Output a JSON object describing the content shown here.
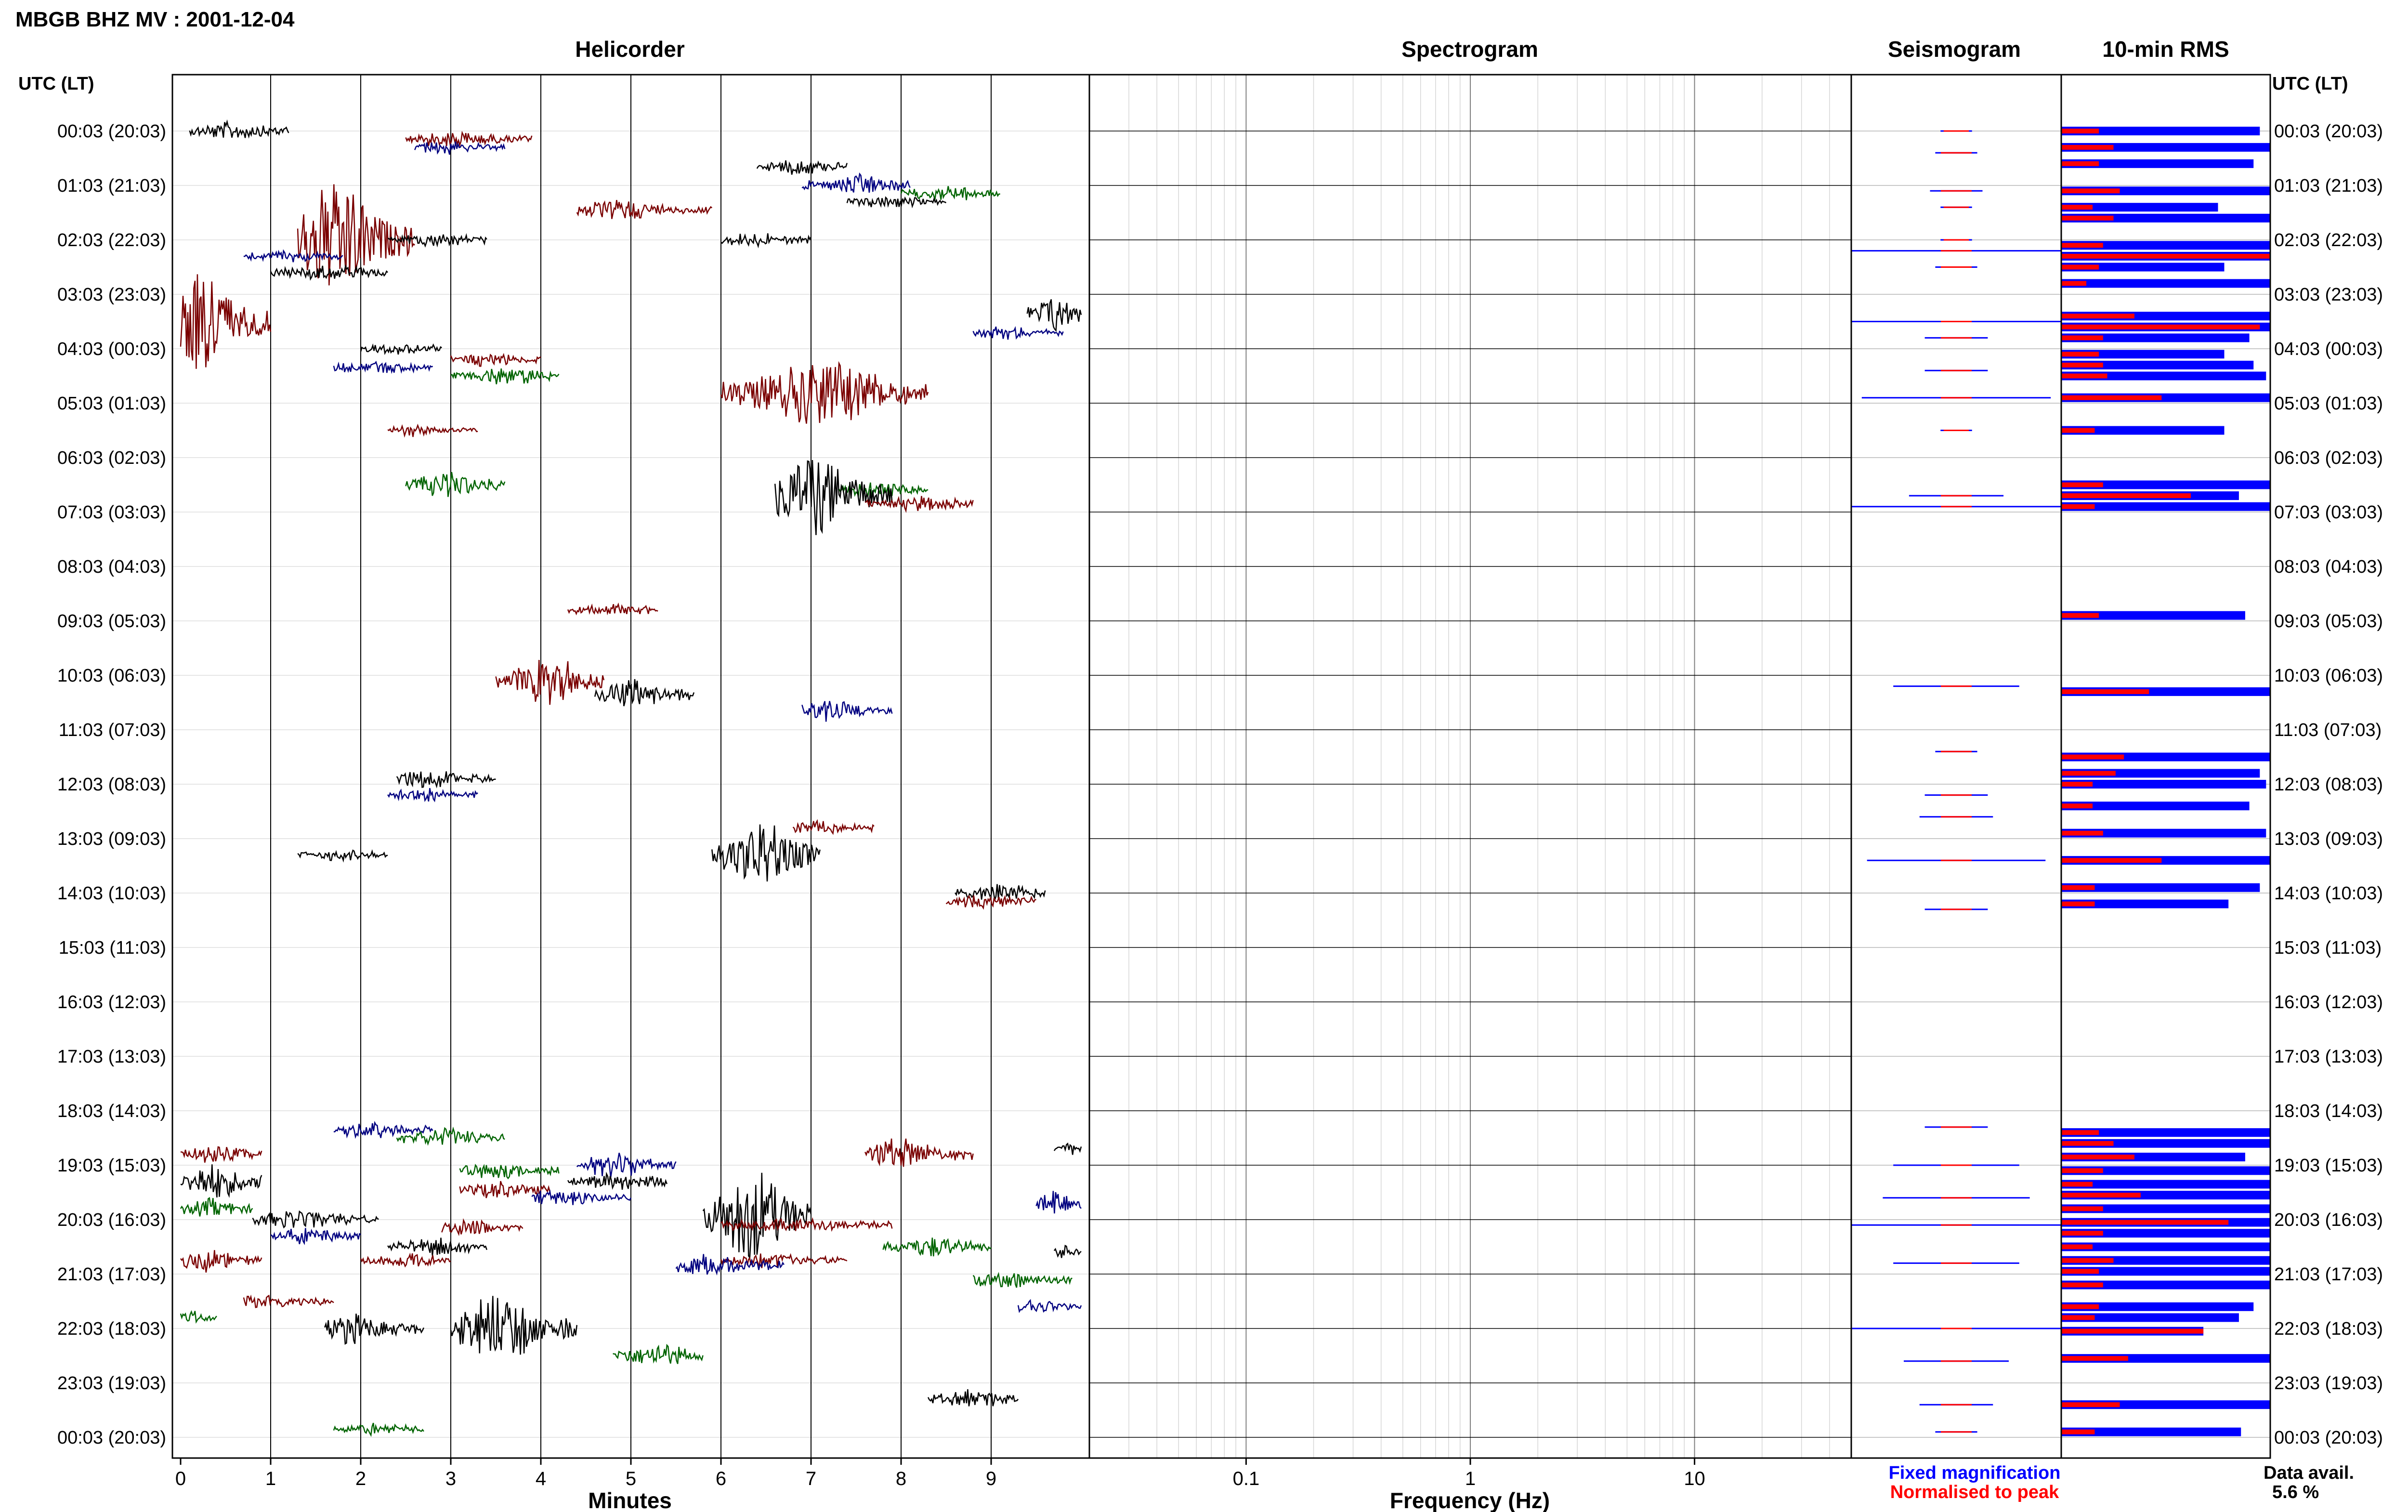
{
  "figure": {
    "title": "MBGB BHZ MV : 2001-12-04",
    "panel_titles": {
      "helicorder": "Helicorder",
      "spectrogram": "Spectrogram",
      "seismogram": "Seismogram",
      "rms": "10-min RMS"
    },
    "utc_lt_header_left": "UTC (LT)",
    "utc_lt_header_right": "UTC (LT)",
    "xlabel_helicorder": "Minutes",
    "xlabel_spectrogram": "Frequency (Hz)",
    "legend": {
      "fixed": "Fixed magnification",
      "normalised": "Normalised to peak"
    },
    "data_avail_label": "Data avail.",
    "data_avail_value": "5.6 %",
    "colors": {
      "trace_cycle": [
        "#000000",
        "#7a0000",
        "#000080",
        "#006400"
      ],
      "fixed": "#0000ff",
      "normalised": "#ff0000",
      "grid": "#000000"
    }
  },
  "chart_data": [
    {
      "type": "line",
      "name": "helicorder",
      "xlabel": "Minutes",
      "x_ticks": [
        0,
        1,
        2,
        3,
        4,
        5,
        6,
        7,
        8,
        9
      ],
      "xlim": [
        0,
        10
      ],
      "row_labels": [
        "00:03 (20:03)",
        "01:03 (21:03)",
        "02:03 (22:03)",
        "03:03 (23:03)",
        "04:03 (00:03)",
        "05:03 (01:03)",
        "06:03 (02:03)",
        "07:03 (03:03)",
        "08:03 (04:03)",
        "09:03 (05:03)",
        "10:03 (06:03)",
        "11:03 (07:03)",
        "12:03 (08:03)",
        "13:03 (09:03)",
        "14:03 (10:03)",
        "15:03 (11:03)",
        "16:03 (12:03)",
        "17:03 (13:03)",
        "18:03 (14:03)",
        "19:03 (15:03)",
        "20:03 (16:03)",
        "21:03 (17:03)",
        "22:03 (18:03)",
        "23:03 (19:03)",
        "00:03 (20:03)"
      ],
      "bursts": [
        {
          "row": 0.0,
          "t0": 0.1,
          "t1": 1.2,
          "amp": 0.15,
          "c": 0
        },
        {
          "row": 0.15,
          "t0": 2.5,
          "t1": 3.9,
          "amp": 0.12,
          "c": 1
        },
        {
          "row": 0.3,
          "t0": 2.6,
          "t1": 3.6,
          "amp": 0.1,
          "c": 2
        },
        {
          "row": 0.65,
          "t0": 6.4,
          "t1": 7.4,
          "amp": 0.12,
          "c": 0
        },
        {
          "row": 1.0,
          "t0": 6.9,
          "t1": 8.1,
          "amp": 0.16,
          "c": 2
        },
        {
          "row": 1.15,
          "t0": 8.0,
          "t1": 9.1,
          "amp": 0.12,
          "c": 3
        },
        {
          "row": 1.3,
          "t0": 7.4,
          "t1": 8.5,
          "amp": 0.08,
          "c": 0
        },
        {
          "row": 1.45,
          "t0": 4.4,
          "t1": 5.9,
          "amp": 0.15,
          "c": 1
        },
        {
          "row": 2.0,
          "t0": 1.3,
          "t1": 2.6,
          "amp": 1.0,
          "c": 1
        },
        {
          "row": 2.0,
          "t0": 2.3,
          "t1": 3.4,
          "amp": 0.1,
          "c": 0
        },
        {
          "row": 2.0,
          "t0": 6.0,
          "t1": 7.0,
          "amp": 0.1,
          "c": 0
        },
        {
          "row": 2.3,
          "t0": 0.7,
          "t1": 1.8,
          "amp": 0.08,
          "c": 2
        },
        {
          "row": 2.6,
          "t0": 1.0,
          "t1": 2.3,
          "amp": 0.12,
          "c": 0
        },
        {
          "row": 3.5,
          "t0": 0.0,
          "t1": 1.0,
          "amp": 0.9,
          "c": 1
        },
        {
          "row": 3.35,
          "t0": 9.4,
          "t1": 10.0,
          "amp": 0.35,
          "c": 0
        },
        {
          "row": 3.7,
          "t0": 8.8,
          "t1": 9.8,
          "amp": 0.1,
          "c": 2
        },
        {
          "row": 4.0,
          "t0": 2.0,
          "t1": 2.9,
          "amp": 0.08,
          "c": 0
        },
        {
          "row": 4.2,
          "t0": 3.0,
          "t1": 4.0,
          "amp": 0.12,
          "c": 1
        },
        {
          "row": 4.35,
          "t0": 1.7,
          "t1": 2.8,
          "amp": 0.1,
          "c": 2
        },
        {
          "row": 4.5,
          "t0": 3.0,
          "t1": 4.2,
          "amp": 0.14,
          "c": 3
        },
        {
          "row": 4.8,
          "t0": 6.0,
          "t1": 8.3,
          "amp": 0.55,
          "c": 1
        },
        {
          "row": 5.5,
          "t0": 2.3,
          "t1": 3.3,
          "amp": 0.08,
          "c": 1
        },
        {
          "row": 6.5,
          "t0": 2.5,
          "t1": 3.6,
          "amp": 0.2,
          "c": 3
        },
        {
          "row": 6.6,
          "t0": 7.3,
          "t1": 8.3,
          "amp": 0.12,
          "c": 3
        },
        {
          "row": 6.7,
          "t0": 6.6,
          "t1": 7.9,
          "amp": 0.7,
          "c": 0
        },
        {
          "row": 6.85,
          "t0": 7.6,
          "t1": 8.8,
          "amp": 0.12,
          "c": 1
        },
        {
          "row": 8.8,
          "t0": 4.3,
          "t1": 5.3,
          "amp": 0.1,
          "c": 1
        },
        {
          "row": 10.1,
          "t0": 3.5,
          "t1": 4.7,
          "amp": 0.4,
          "c": 1
        },
        {
          "row": 10.35,
          "t0": 4.6,
          "t1": 5.7,
          "amp": 0.25,
          "c": 0
        },
        {
          "row": 10.65,
          "t0": 6.9,
          "t1": 7.9,
          "amp": 0.18,
          "c": 2
        },
        {
          "row": 11.9,
          "t0": 2.4,
          "t1": 3.5,
          "amp": 0.15,
          "c": 0
        },
        {
          "row": 12.2,
          "t0": 2.3,
          "t1": 3.3,
          "amp": 0.1,
          "c": 2
        },
        {
          "row": 12.8,
          "t0": 6.8,
          "t1": 7.7,
          "amp": 0.12,
          "c": 1
        },
        {
          "row": 13.3,
          "t0": 1.3,
          "t1": 2.3,
          "amp": 0.08,
          "c": 0
        },
        {
          "row": 13.3,
          "t0": 5.9,
          "t1": 7.1,
          "amp": 0.55,
          "c": 0
        },
        {
          "row": 14.0,
          "t0": 8.6,
          "t1": 9.6,
          "amp": 0.15,
          "c": 0
        },
        {
          "row": 14.15,
          "t0": 8.5,
          "t1": 9.5,
          "amp": 0.1,
          "c": 1
        },
        {
          "row": 18.35,
          "t0": 1.7,
          "t1": 2.8,
          "amp": 0.15,
          "c": 2
        },
        {
          "row": 18.5,
          "t0": 2.4,
          "t1": 3.6,
          "amp": 0.14,
          "c": 3
        },
        {
          "row": 18.8,
          "t0": 0.0,
          "t1": 0.9,
          "amp": 0.16,
          "c": 1
        },
        {
          "row": 18.8,
          "t0": 7.6,
          "t1": 8.8,
          "amp": 0.25,
          "c": 1
        },
        {
          "row": 18.7,
          "t0": 9.7,
          "t1": 10.0,
          "amp": 0.1,
          "c": 0
        },
        {
          "row": 19.0,
          "t0": 4.4,
          "t1": 5.5,
          "amp": 0.2,
          "c": 2
        },
        {
          "row": 19.1,
          "t0": 3.1,
          "t1": 4.2,
          "amp": 0.15,
          "c": 3
        },
        {
          "row": 19.3,
          "t0": 0.0,
          "t1": 0.9,
          "amp": 0.3,
          "c": 0
        },
        {
          "row": 19.3,
          "t0": 4.3,
          "t1": 5.4,
          "amp": 0.15,
          "c": 0
        },
        {
          "row": 19.45,
          "t0": 3.1,
          "t1": 4.1,
          "amp": 0.15,
          "c": 1
        },
        {
          "row": 19.6,
          "t0": 3.9,
          "t1": 5.0,
          "amp": 0.12,
          "c": 2
        },
        {
          "row": 19.9,
          "t0": 5.8,
          "t1": 7.0,
          "amp": 0.8,
          "c": 0
        },
        {
          "row": 19.7,
          "t0": 9.5,
          "t1": 10.0,
          "amp": 0.2,
          "c": 2
        },
        {
          "row": 19.8,
          "t0": 0.0,
          "t1": 0.8,
          "amp": 0.15,
          "c": 3
        },
        {
          "row": 20.0,
          "t0": 0.8,
          "t1": 2.2,
          "amp": 0.15,
          "c": 0
        },
        {
          "row": 20.15,
          "t0": 2.9,
          "t1": 3.8,
          "amp": 0.14,
          "c": 1
        },
        {
          "row": 20.3,
          "t0": 1.0,
          "t1": 2.0,
          "amp": 0.12,
          "c": 2
        },
        {
          "row": 20.1,
          "t0": 6.0,
          "t1": 7.9,
          "amp": 0.12,
          "c": 1
        },
        {
          "row": 20.5,
          "t0": 2.3,
          "t1": 3.4,
          "amp": 0.15,
          "c": 0
        },
        {
          "row": 20.5,
          "t0": 7.8,
          "t1": 9.0,
          "amp": 0.15,
          "c": 3
        },
        {
          "row": 20.75,
          "t0": 0.0,
          "t1": 0.9,
          "amp": 0.18,
          "c": 1
        },
        {
          "row": 20.75,
          "t0": 2.0,
          "t1": 3.0,
          "amp": 0.12,
          "c": 1
        },
        {
          "row": 20.75,
          "t0": 6.0,
          "t1": 7.4,
          "amp": 0.12,
          "c": 1
        },
        {
          "row": 20.6,
          "t0": 9.7,
          "t1": 10.0,
          "amp": 0.12,
          "c": 0
        },
        {
          "row": 20.85,
          "t0": 5.5,
          "t1": 6.7,
          "amp": 0.2,
          "c": 2
        },
        {
          "row": 21.1,
          "t0": 8.8,
          "t1": 9.9,
          "amp": 0.15,
          "c": 3
        },
        {
          "row": 21.5,
          "t0": 0.7,
          "t1": 1.7,
          "amp": 0.12,
          "c": 1
        },
        {
          "row": 21.6,
          "t0": 9.3,
          "t1": 10.0,
          "amp": 0.12,
          "c": 2
        },
        {
          "row": 21.8,
          "t0": 0.0,
          "t1": 0.4,
          "amp": 0.1,
          "c": 3
        },
        {
          "row": 22.0,
          "t0": 1.6,
          "t1": 2.7,
          "amp": 0.25,
          "c": 0
        },
        {
          "row": 22.0,
          "t0": 3.0,
          "t1": 4.4,
          "amp": 0.6,
          "c": 0
        },
        {
          "row": 22.5,
          "t0": 4.8,
          "t1": 5.8,
          "amp": 0.2,
          "c": 3
        },
        {
          "row": 23.3,
          "t0": 8.3,
          "t1": 9.3,
          "amp": 0.15,
          "c": 0
        },
        {
          "row": 23.85,
          "t0": 1.7,
          "t1": 2.7,
          "amp": 0.08,
          "c": 3
        }
      ]
    },
    {
      "type": "line",
      "name": "spectrogram",
      "xlabel": "Frequency (Hz)",
      "scale": "log",
      "xlim": [
        0.02,
        50
      ],
      "x_ticks": [
        0.1,
        1,
        10
      ],
      "x_tick_labels": [
        "0.1",
        "1",
        "10"
      ],
      "grid": true,
      "rows": 25
    },
    {
      "type": "line",
      "name": "seismogram",
      "series": [
        {
          "name": "Fixed magnification",
          "color": "#0000ff"
        },
        {
          "name": "Normalised to peak",
          "color": "#ff0000"
        }
      ],
      "rows": [
        {
          "row": 0.0,
          "w": 0.15
        },
        {
          "row": 0.4,
          "w": 0.2
        },
        {
          "row": 1.1,
          "w": 0.25
        },
        {
          "row": 1.4,
          "w": 0.15
        },
        {
          "row": 2.0,
          "w": 0.15
        },
        {
          "row": 2.2,
          "w": 1.0
        },
        {
          "row": 2.5,
          "w": 0.2
        },
        {
          "row": 3.5,
          "w": 1.0
        },
        {
          "row": 3.8,
          "w": 0.3
        },
        {
          "row": 4.4,
          "w": 0.3
        },
        {
          "row": 4.9,
          "w": 0.9
        },
        {
          "row": 5.5,
          "w": 0.15
        },
        {
          "row": 6.7,
          "w": 0.45
        },
        {
          "row": 6.9,
          "w": 1.0
        },
        {
          "row": 10.2,
          "w": 0.6
        },
        {
          "row": 11.4,
          "w": 0.2
        },
        {
          "row": 12.2,
          "w": 0.3
        },
        {
          "row": 12.6,
          "w": 0.35
        },
        {
          "row": 13.4,
          "w": 0.85
        },
        {
          "row": 14.3,
          "w": 0.3
        },
        {
          "row": 18.3,
          "w": 0.3
        },
        {
          "row": 19.0,
          "w": 0.6
        },
        {
          "row": 19.6,
          "w": 0.7
        },
        {
          "row": 20.1,
          "w": 1.0
        },
        {
          "row": 20.8,
          "w": 0.6
        },
        {
          "row": 22.0,
          "w": 1.0
        },
        {
          "row": 22.6,
          "w": 0.5
        },
        {
          "row": 23.4,
          "w": 0.35
        },
        {
          "row": 23.9,
          "w": 0.2
        }
      ]
    },
    {
      "type": "bar",
      "name": "rms",
      "title": "10-min RMS",
      "series": [
        {
          "name": "Fixed magnification",
          "color": "#0000ff"
        },
        {
          "name": "Normalised to peak",
          "color": "#ff0000"
        }
      ],
      "bars": [
        {
          "row": 0.0,
          "blue": 0.95,
          "red": 0.18
        },
        {
          "row": 0.3,
          "blue": 1.0,
          "red": 0.25
        },
        {
          "row": 0.6,
          "blue": 0.92,
          "red": 0.18
        },
        {
          "row": 1.1,
          "blue": 1.0,
          "red": 0.28
        },
        {
          "row": 1.4,
          "blue": 0.75,
          "red": 0.15
        },
        {
          "row": 1.6,
          "blue": 1.0,
          "red": 0.25
        },
        {
          "row": 2.1,
          "blue": 1.0,
          "red": 0.2
        },
        {
          "row": 2.3,
          "blue": 1.0,
          "red": 1.0
        },
        {
          "row": 2.5,
          "blue": 0.78,
          "red": 0.18
        },
        {
          "row": 2.8,
          "blue": 1.0,
          "red": 0.12
        },
        {
          "row": 3.4,
          "blue": 1.0,
          "red": 0.35
        },
        {
          "row": 3.6,
          "blue": 1.0,
          "red": 0.95
        },
        {
          "row": 3.8,
          "blue": 0.9,
          "red": 0.2
        },
        {
          "row": 4.1,
          "blue": 0.78,
          "red": 0.18
        },
        {
          "row": 4.3,
          "blue": 0.92,
          "red": 0.2
        },
        {
          "row": 4.5,
          "blue": 0.98,
          "red": 0.22
        },
        {
          "row": 4.9,
          "blue": 1.0,
          "red": 0.48
        },
        {
          "row": 5.5,
          "blue": 0.78,
          "red": 0.16
        },
        {
          "row": 6.5,
          "blue": 1.0,
          "red": 0.2
        },
        {
          "row": 6.7,
          "blue": 0.85,
          "red": 0.62
        },
        {
          "row": 6.9,
          "blue": 1.0,
          "red": 0.16
        },
        {
          "row": 8.9,
          "blue": 0.88,
          "red": 0.18
        },
        {
          "row": 10.3,
          "blue": 1.0,
          "red": 0.42
        },
        {
          "row": 11.5,
          "blue": 1.0,
          "red": 0.3
        },
        {
          "row": 11.8,
          "blue": 0.95,
          "red": 0.26
        },
        {
          "row": 12.0,
          "blue": 0.98,
          "red": 0.15
        },
        {
          "row": 12.4,
          "blue": 0.9,
          "red": 0.15
        },
        {
          "row": 12.9,
          "blue": 0.98,
          "red": 0.2
        },
        {
          "row": 13.4,
          "blue": 1.0,
          "red": 0.48
        },
        {
          "row": 13.9,
          "blue": 0.95,
          "red": 0.16
        },
        {
          "row": 14.2,
          "blue": 0.8,
          "red": 0.16
        },
        {
          "row": 18.4,
          "blue": 1.0,
          "red": 0.18
        },
        {
          "row": 18.6,
          "blue": 1.0,
          "red": 0.25
        },
        {
          "row": 18.85,
          "blue": 0.88,
          "red": 0.35
        },
        {
          "row": 19.1,
          "blue": 1.0,
          "red": 0.2
        },
        {
          "row": 19.35,
          "blue": 1.0,
          "red": 0.15
        },
        {
          "row": 19.55,
          "blue": 1.0,
          "red": 0.38
        },
        {
          "row": 19.8,
          "blue": 1.0,
          "red": 0.2
        },
        {
          "row": 20.05,
          "blue": 1.0,
          "red": 0.8
        },
        {
          "row": 20.25,
          "blue": 1.0,
          "red": 0.2
        },
        {
          "row": 20.5,
          "blue": 1.0,
          "red": 0.15
        },
        {
          "row": 20.75,
          "blue": 1.0,
          "red": 0.25
        },
        {
          "row": 20.95,
          "blue": 1.0,
          "red": 0.18
        },
        {
          "row": 21.2,
          "blue": 1.0,
          "red": 0.2
        },
        {
          "row": 21.6,
          "blue": 0.92,
          "red": 0.18
        },
        {
          "row": 21.8,
          "blue": 0.85,
          "red": 0.16
        },
        {
          "row": 22.05,
          "blue": 0.68,
          "red": 0.68
        },
        {
          "row": 22.55,
          "blue": 1.0,
          "red": 0.32
        },
        {
          "row": 23.4,
          "blue": 1.0,
          "red": 0.28
        },
        {
          "row": 23.9,
          "blue": 0.86,
          "red": 0.16
        }
      ]
    }
  ]
}
